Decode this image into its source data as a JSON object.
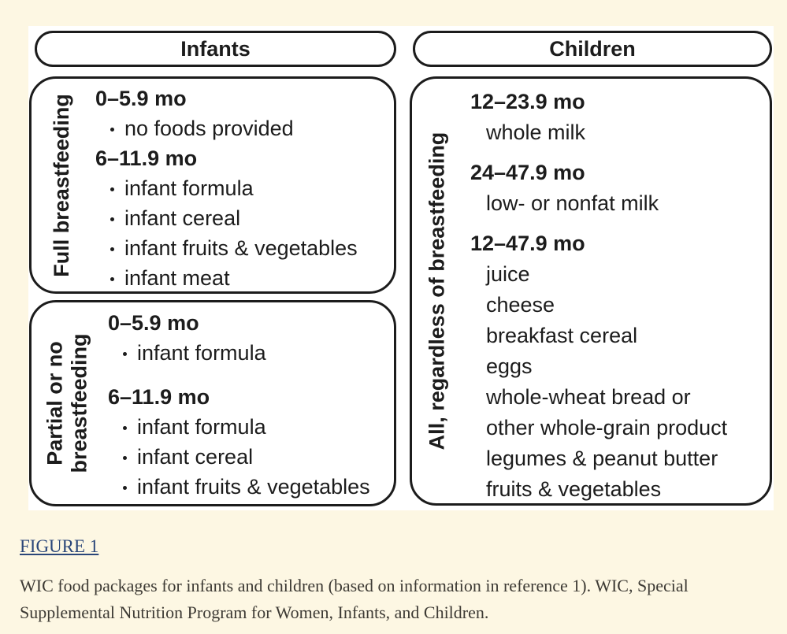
{
  "colors": {
    "page_background": "#FDF7E3",
    "figure_background": "#FFFFFF",
    "box_border": "#1C1C1C",
    "figure_text": "#1C1C1C",
    "link_color": "#2A4679",
    "caption_text": "#3D3A34"
  },
  "headers": {
    "infants": "Infants",
    "children": "Children"
  },
  "infants": {
    "full": {
      "side_label": "Full breastfeeding",
      "sections": [
        {
          "age": "0–5.9 mo",
          "items": [
            "no foods provided"
          ]
        },
        {
          "age": "6–11.9 mo",
          "items": [
            "infant formula",
            "infant cereal",
            "infant fruits & vegetables",
            "infant meat"
          ]
        }
      ]
    },
    "partial": {
      "side_label_line1": "Partial or no",
      "side_label_line2": "breastfeeding",
      "sections": [
        {
          "age": "0–5.9 mo",
          "items": [
            "infant formula"
          ]
        },
        {
          "age": "6–11.9 mo",
          "items": [
            "infant formula",
            "infant cereal",
            "infant fruits & vegetables"
          ]
        }
      ]
    }
  },
  "children": {
    "side_label": "All, regardless of breastfeeding",
    "sections": [
      {
        "age": "12–23.9 mo",
        "items": [
          "whole milk"
        ]
      },
      {
        "age": "24–47.9 mo",
        "items": [
          "low- or nonfat milk"
        ]
      },
      {
        "age": "12–47.9 mo",
        "items": [
          "juice",
          "cheese",
          "breakfast cereal",
          "eggs",
          "whole-wheat bread or",
          "other whole-grain product",
          "legumes & peanut butter",
          "fruits & vegetables"
        ]
      }
    ]
  },
  "caption": {
    "figure_label": "FIGURE 1",
    "text": "WIC food packages for infants and children (based on information in reference 1). WIC, Special Supplemental Nutrition Program for Women, Infants, and Children."
  }
}
